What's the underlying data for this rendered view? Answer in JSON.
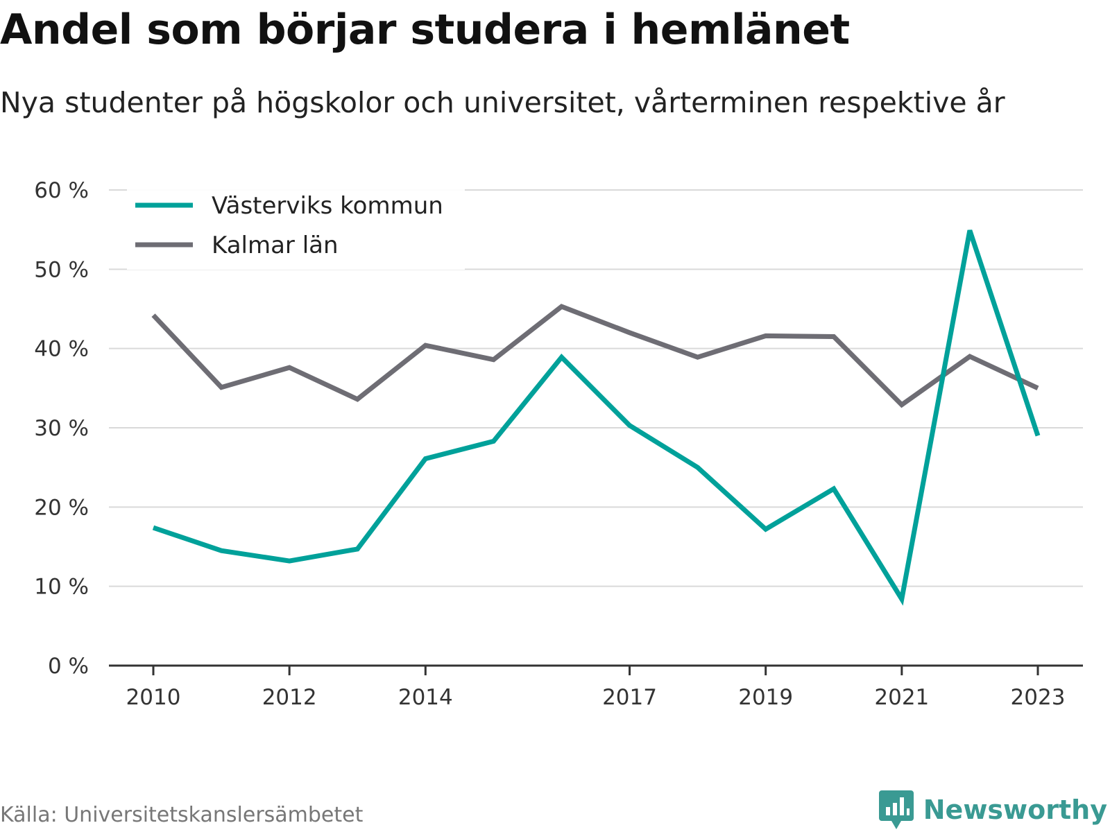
{
  "header": {
    "title": "Andel som börjar studera i hemlänet",
    "subtitle": "Nya studenter på högskolor och universitet, vårterminen respektive år"
  },
  "footer": {
    "source": "Källa: Universitetskanslersämbetet",
    "brand": "Newsworthy"
  },
  "colors": {
    "vastervik": "#00a19a",
    "kalmar": "#6e6d74",
    "grid": "#d9d9d9",
    "axis": "#333333",
    "brand": "#3a9a93"
  },
  "icons": {
    "brand_logo": "chart-bubble-icon"
  },
  "chart_data": {
    "type": "line",
    "title": "Andel som börjar studera i hemlänet",
    "subtitle": "Nya studenter på högskolor och universitet, vårterminen respektive år",
    "x": [
      2010,
      2011,
      2012,
      2013,
      2014,
      2015,
      2016,
      2017,
      2018,
      2019,
      2020,
      2021,
      2022,
      2023
    ],
    "x_ticks": [
      "2010",
      "2012",
      "2014",
      "2017",
      "2019",
      "2021",
      "2023"
    ],
    "y_ticks": [
      "0 %",
      "10 %",
      "20 %",
      "30 %",
      "40 %",
      "50 %",
      "60 %"
    ],
    "ylim": [
      0,
      60
    ],
    "grid": true,
    "legend_position": "top-left",
    "series": [
      {
        "name": "Västerviks kommun",
        "color": "#00a19a",
        "values": [
          17.4,
          14.5,
          13.2,
          14.7,
          26.1,
          28.3,
          38.9,
          30.3,
          25.0,
          17.2,
          22.3,
          8.4,
          54.9,
          29.0
        ]
      },
      {
        "name": "Kalmar län",
        "color": "#6e6d74",
        "values": [
          44.2,
          35.1,
          37.6,
          33.6,
          40.4,
          38.6,
          45.3,
          42.0,
          38.9,
          41.6,
          41.5,
          32.9,
          39.0,
          35.0
        ]
      }
    ]
  }
}
